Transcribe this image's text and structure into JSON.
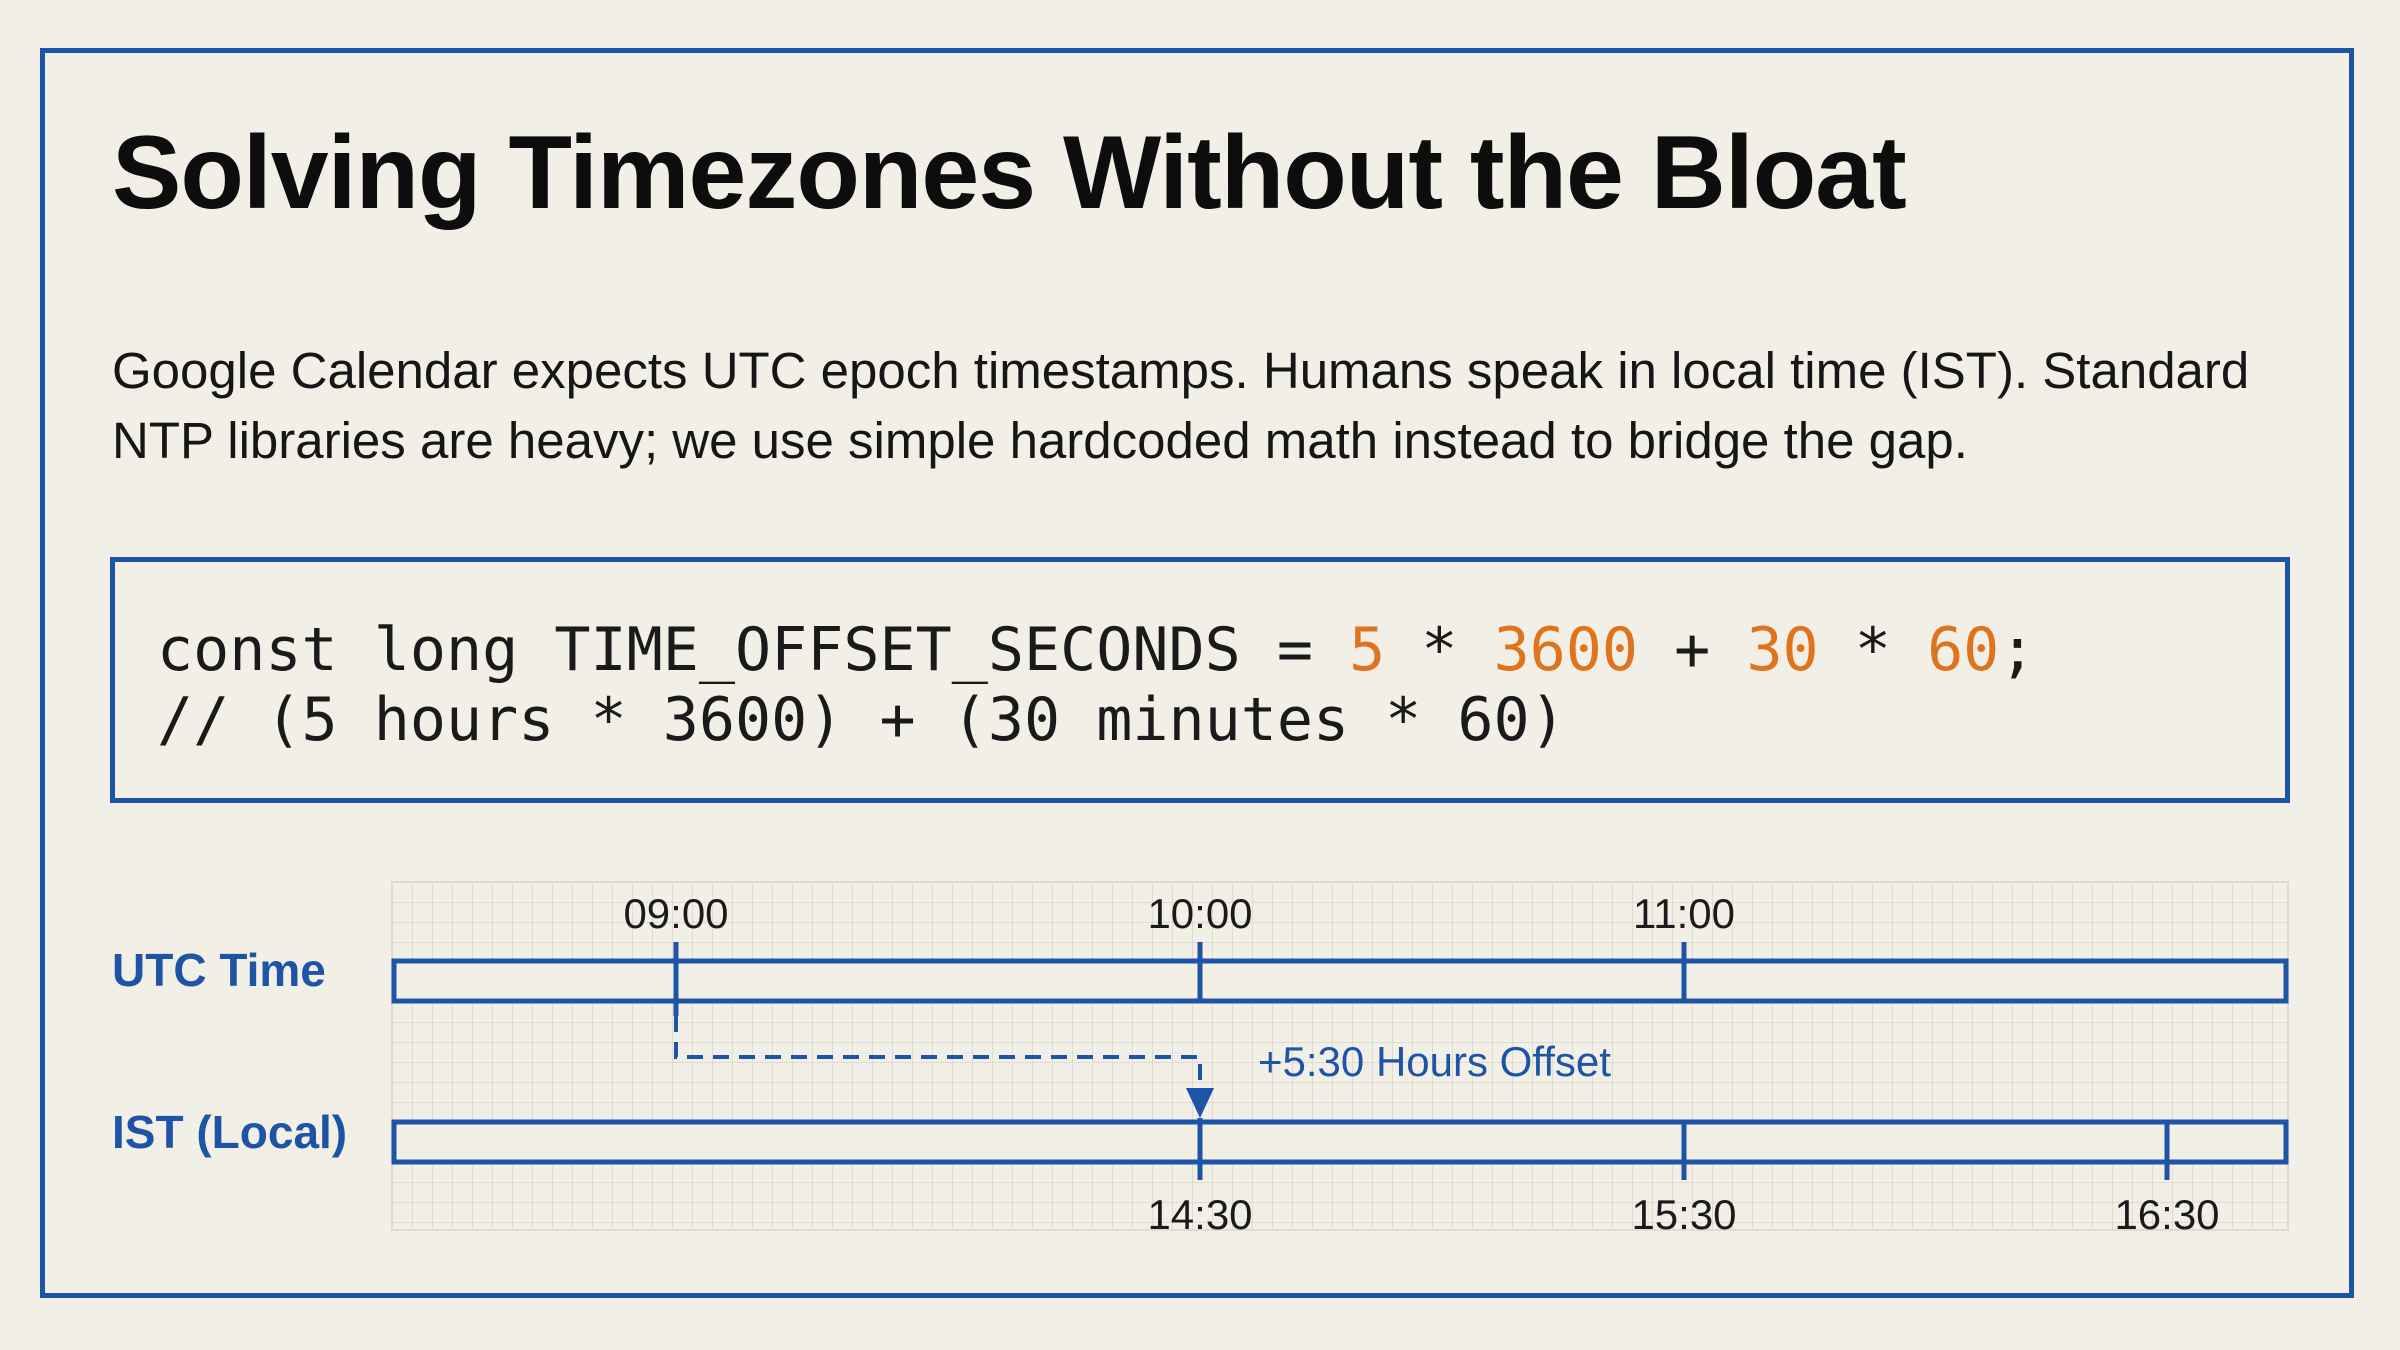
{
  "slide": {
    "title": "Solving Timezones Without the Bloat",
    "description": "Google Calendar expects UTC epoch timestamps. Humans speak in local time (IST). Standard NTP libraries are heavy; we use simple hardcoded math instead to bridge the gap."
  },
  "code": {
    "line1": {
      "prefix": "const long TIME_OFFSET_SECONDS = ",
      "n1": "5",
      "op1": " * ",
      "n2": "3600",
      "op2": " + ",
      "n3": "30",
      "op3": " * ",
      "n4": "60",
      "suffix": ";"
    },
    "line2": "// (5 hours * 3600) + (30 minutes * 60)"
  },
  "timeline": {
    "utc_label": "UTC Time",
    "ist_label": "IST (Local)",
    "utc_ticks": [
      "09:00",
      "10:00",
      "11:00"
    ],
    "ist_ticks": [
      "14:30",
      "15:30",
      "16:30"
    ],
    "offset_label": "+5:30 Hours Offset"
  },
  "colors": {
    "accent": "#1d54a6",
    "number": "#e0741e",
    "background": "#f1efe6"
  }
}
